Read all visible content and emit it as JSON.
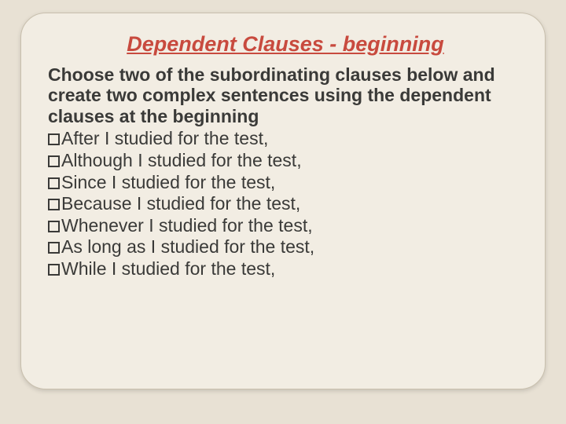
{
  "title": "Dependent Clauses - beginning",
  "instructions": "Choose two of the subordinating clauses below and create two complex sentences using the dependent clauses at the beginning",
  "items": [
    "After I studied for the test,",
    "Although I studied for the test,",
    "Since I studied for the test,",
    "Because I studied for the test,",
    "Whenever I studied for the test,",
    "As long as I studied for the test,",
    "While I studied for the test,"
  ],
  "colors": {
    "background": "#e8e1d4",
    "slide_bg": "#f2ede3",
    "slide_border": "#c9c0ae",
    "title_color": "#c84a3e",
    "text_color": "#3a3a38"
  },
  "fonts": {
    "title_size": 27,
    "body_size": 23
  }
}
